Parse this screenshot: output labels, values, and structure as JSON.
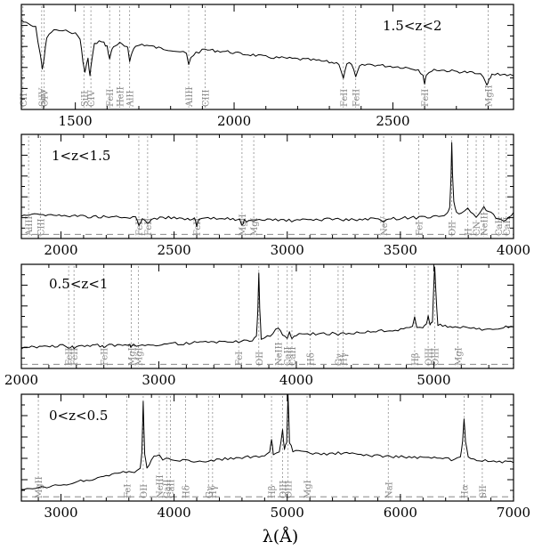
{
  "chart_data": {
    "type": "line",
    "xlabel": "λ(Å)",
    "panels": [
      {
        "label": "1.5<z<2",
        "xlim": [
          1330,
          2880
        ],
        "xticks": [
          1500,
          2000,
          2500
        ],
        "ticks_labelled": true,
        "dashed_level": null,
        "lines": [
          {
            "name": "CII",
            "x": 1335
          },
          {
            "name": "SiIV",
            "x": 1394
          },
          {
            "name": "OIV",
            "x": 1402
          },
          {
            "name": "SiII",
            "x": 1527
          },
          {
            "name": "CIV",
            "x": 1549
          },
          {
            "name": "FeII",
            "x": 1608
          },
          {
            "name": "HeII",
            "x": 1640
          },
          {
            "name": "AlII",
            "x": 1671
          },
          {
            "name": "AlIII",
            "x": 1857
          },
          {
            "name": "CIII",
            "x": 1909
          },
          {
            "name": "FeII",
            "x": 2344
          },
          {
            "name": "FeII",
            "x": 2383
          },
          {
            "name": "FeII",
            "x": 2600
          },
          {
            "name": "MgII",
            "x": 2800
          }
        ],
        "spectrum": {
          "x": [
            1330,
            1345,
            1360,
            1375,
            1390,
            1396,
            1402,
            1410,
            1425,
            1440,
            1460,
            1480,
            1500,
            1515,
            1524,
            1530,
            1540,
            1546,
            1552,
            1560,
            1575,
            1590,
            1600,
            1608,
            1616,
            1625,
            1640,
            1655,
            1665,
            1671,
            1678,
            1690,
            1710,
            1740,
            1770,
            1800,
            1830,
            1850,
            1857,
            1864,
            1880,
            1909,
            1940,
            1980,
            2020,
            2060,
            2100,
            2150,
            2200,
            2250,
            2300,
            2330,
            2344,
            2355,
            2370,
            2383,
            2395,
            2420,
            2460,
            2500,
            2540,
            2580,
            2595,
            2600,
            2606,
            2630,
            2670,
            2710,
            2750,
            2785,
            2796,
            2803,
            2812,
            2830,
            2860,
            2880
          ],
          "y": [
            0.85,
            0.82,
            0.8,
            0.78,
            0.52,
            0.38,
            0.5,
            0.68,
            0.74,
            0.76,
            0.74,
            0.75,
            0.72,
            0.68,
            0.45,
            0.36,
            0.48,
            0.32,
            0.47,
            0.62,
            0.65,
            0.63,
            0.6,
            0.48,
            0.58,
            0.61,
            0.63,
            0.6,
            0.58,
            0.46,
            0.55,
            0.6,
            0.62,
            0.6,
            0.58,
            0.57,
            0.55,
            0.53,
            0.42,
            0.5,
            0.54,
            0.57,
            0.56,
            0.55,
            0.53,
            0.52,
            0.5,
            0.49,
            0.48,
            0.47,
            0.45,
            0.44,
            0.3,
            0.43,
            0.44,
            0.3,
            0.41,
            0.43,
            0.42,
            0.41,
            0.4,
            0.38,
            0.33,
            0.24,
            0.34,
            0.38,
            0.37,
            0.36,
            0.35,
            0.32,
            0.22,
            0.28,
            0.33,
            0.34,
            0.33,
            0.32
          ]
        }
      },
      {
        "label": "1<z<1.5",
        "xlim": [
          1825,
          4000
        ],
        "xticks": [
          2000,
          2500,
          3000,
          3500,
          4000
        ],
        "ticks_labelled": true,
        "dashed_level": 0.04,
        "lines": [
          {
            "name": "AlIII",
            "x": 1857
          },
          {
            "name": "CIII",
            "x": 1909
          },
          {
            "name": "FeII",
            "x": 2344
          },
          {
            "name": "FeII",
            "x": 2383
          },
          {
            "name": "FeII",
            "x": 2600
          },
          {
            "name": "MgII",
            "x": 2800
          },
          {
            "name": "MgI",
            "x": 2852
          },
          {
            "name": "NeV",
            "x": 3426
          },
          {
            "name": "FeI",
            "x": 3581
          },
          {
            "name": "OII",
            "x": 3727
          },
          {
            "name": "H",
            "x": 3798
          },
          {
            "name": "CN",
            "x": 3835
          },
          {
            "name": "NeIII",
            "x": 3869
          },
          {
            "name": "CaII",
            "x": 3934
          },
          {
            "name": "CaII",
            "x": 3968
          }
        ],
        "spectrum": {
          "x": [
            1825,
            1870,
            1920,
            1980,
            2050,
            2120,
            2200,
            2280,
            2330,
            2344,
            2360,
            2383,
            2400,
            2450,
            2500,
            2560,
            2590,
            2600,
            2610,
            2650,
            2700,
            2760,
            2790,
            2800,
            2810,
            2852,
            2900,
            2960,
            3020,
            3080,
            3140,
            3200,
            3260,
            3320,
            3380,
            3426,
            3470,
            3520,
            3570,
            3620,
            3670,
            3705,
            3718,
            3724,
            3727,
            3730,
            3736,
            3748,
            3770,
            3798,
            3835,
            3869,
            3900,
            3934,
            3968,
            4000
          ],
          "y": [
            0.22,
            0.24,
            0.23,
            0.22,
            0.22,
            0.21,
            0.21,
            0.2,
            0.2,
            0.13,
            0.19,
            0.15,
            0.19,
            0.2,
            0.2,
            0.19,
            0.19,
            0.12,
            0.18,
            0.19,
            0.19,
            0.19,
            0.18,
            0.12,
            0.17,
            0.16,
            0.18,
            0.18,
            0.17,
            0.18,
            0.18,
            0.19,
            0.18,
            0.18,
            0.19,
            0.17,
            0.19,
            0.2,
            0.2,
            0.21,
            0.22,
            0.23,
            0.3,
            0.6,
            0.93,
            0.62,
            0.35,
            0.25,
            0.24,
            0.28,
            0.2,
            0.3,
            0.24,
            0.18,
            0.17,
            0.25
          ]
        }
      },
      {
        "label": "0.5<z<1",
        "xlim": [
          2000,
          5580
        ],
        "xticks": [
          2000,
          3000,
          4000,
          5000
        ],
        "ticks_labelled": true,
        "dashed_level": 0.04,
        "lines": [
          {
            "name": "FeII",
            "x": 2344
          },
          {
            "name": "FeII",
            "x": 2383
          },
          {
            "name": "FeII",
            "x": 2600
          },
          {
            "name": "MgII",
            "x": 2800
          },
          {
            "name": "MgI",
            "x": 2852
          },
          {
            "name": "FeI",
            "x": 3581
          },
          {
            "name": "OII",
            "x": 3727
          },
          {
            "name": "NeIII",
            "x": 3869
          },
          {
            "name": "CaII",
            "x": 3934
          },
          {
            "name": "CaII",
            "x": 3968
          },
          {
            "name": "Hδ",
            "x": 4102
          },
          {
            "name": "Gγ",
            "x": 4304
          },
          {
            "name": "Hγ",
            "x": 4340
          },
          {
            "name": "Hβ",
            "x": 4861
          },
          {
            "name": "OIII",
            "x": 4959
          },
          {
            "name": "OIII",
            "x": 5007
          },
          {
            "name": "MgI",
            "x": 5175
          }
        ],
        "spectrum": {
          "x": [
            2000,
            2150,
            2300,
            2344,
            2370,
            2383,
            2420,
            2500,
            2590,
            2600,
            2620,
            2700,
            2790,
            2800,
            2815,
            2900,
            3000,
            3100,
            3200,
            3300,
            3400,
            3500,
            3600,
            3680,
            3710,
            3720,
            3727,
            3734,
            3745,
            3790,
            3830,
            3869,
            3900,
            3934,
            3950,
            3968,
            4000,
            4102,
            4200,
            4304,
            4400,
            4500,
            4600,
            4700,
            4800,
            4845,
            4861,
            4877,
            4920,
            4945,
            4959,
            4973,
            4990,
            5000,
            5007,
            5014,
            5030,
            5100,
            5175,
            5250,
            5350,
            5450,
            5580
          ],
          "y": [
            0.2,
            0.21,
            0.22,
            0.19,
            0.21,
            0.19,
            0.22,
            0.22,
            0.22,
            0.2,
            0.22,
            0.22,
            0.22,
            0.2,
            0.22,
            0.23,
            0.23,
            0.24,
            0.24,
            0.25,
            0.25,
            0.26,
            0.26,
            0.27,
            0.3,
            0.55,
            0.93,
            0.58,
            0.28,
            0.31,
            0.33,
            0.4,
            0.31,
            0.29,
            0.36,
            0.29,
            0.32,
            0.33,
            0.34,
            0.33,
            0.34,
            0.35,
            0.36,
            0.37,
            0.38,
            0.4,
            0.5,
            0.4,
            0.39,
            0.42,
            0.5,
            0.42,
            0.45,
            0.8,
            0.98,
            0.75,
            0.42,
            0.4,
            0.39,
            0.39,
            0.38,
            0.39,
            0.4
          ]
        }
      },
      {
        "label": "0<z<0.5",
        "xlim": [
          2650,
          7000
        ],
        "xticks": [
          3000,
          4000,
          5000,
          6000,
          7000
        ],
        "ticks_labelled": true,
        "dashed_level": 0.04,
        "lines": [
          {
            "name": "MgII",
            "x": 2800
          },
          {
            "name": "FeI",
            "x": 3581
          },
          {
            "name": "OII",
            "x": 3727
          },
          {
            "name": "NeIII",
            "x": 3869
          },
          {
            "name": "CaII",
            "x": 3934
          },
          {
            "name": "CaII",
            "x": 3968
          },
          {
            "name": "Hδ",
            "x": 4102
          },
          {
            "name": "Gγ",
            "x": 4304
          },
          {
            "name": "Hγ",
            "x": 4340
          },
          {
            "name": "Hβ",
            "x": 4861
          },
          {
            "name": "OIII",
            "x": 4959
          },
          {
            "name": "OIII",
            "x": 5007
          },
          {
            "name": "MgI",
            "x": 5175
          },
          {
            "name": "NaI",
            "x": 5893
          },
          {
            "name": "Hα",
            "x": 6563
          },
          {
            "name": "SII",
            "x": 6724
          }
        ],
        "spectrum": {
          "x": [
            2650,
            2800,
            2950,
            3100,
            3250,
            3400,
            3550,
            3650,
            3700,
            3715,
            3727,
            3740,
            3760,
            3800,
            3869,
            3900,
            3950,
            4000,
            4102,
            4200,
            4304,
            4400,
            4500,
            4600,
            4700,
            4800,
            4845,
            4861,
            4877,
            4930,
            4959,
            4975,
            4995,
            5007,
            5020,
            5050,
            5175,
            5300,
            5500,
            5700,
            5893,
            6100,
            6300,
            6450,
            6530,
            6550,
            6563,
            6576,
            6600,
            6724,
            6850,
            7000
          ],
          "y": [
            0.1,
            0.12,
            0.14,
            0.17,
            0.2,
            0.24,
            0.27,
            0.28,
            0.3,
            0.45,
            0.93,
            0.45,
            0.3,
            0.4,
            0.44,
            0.38,
            0.4,
            0.38,
            0.38,
            0.37,
            0.38,
            0.39,
            0.4,
            0.41,
            0.41,
            0.42,
            0.45,
            0.58,
            0.44,
            0.46,
            0.66,
            0.48,
            0.55,
            1.0,
            0.55,
            0.47,
            0.45,
            0.44,
            0.45,
            0.43,
            0.42,
            0.41,
            0.4,
            0.39,
            0.4,
            0.55,
            0.76,
            0.55,
            0.4,
            0.38,
            0.37,
            0.36
          ]
        }
      }
    ]
  }
}
